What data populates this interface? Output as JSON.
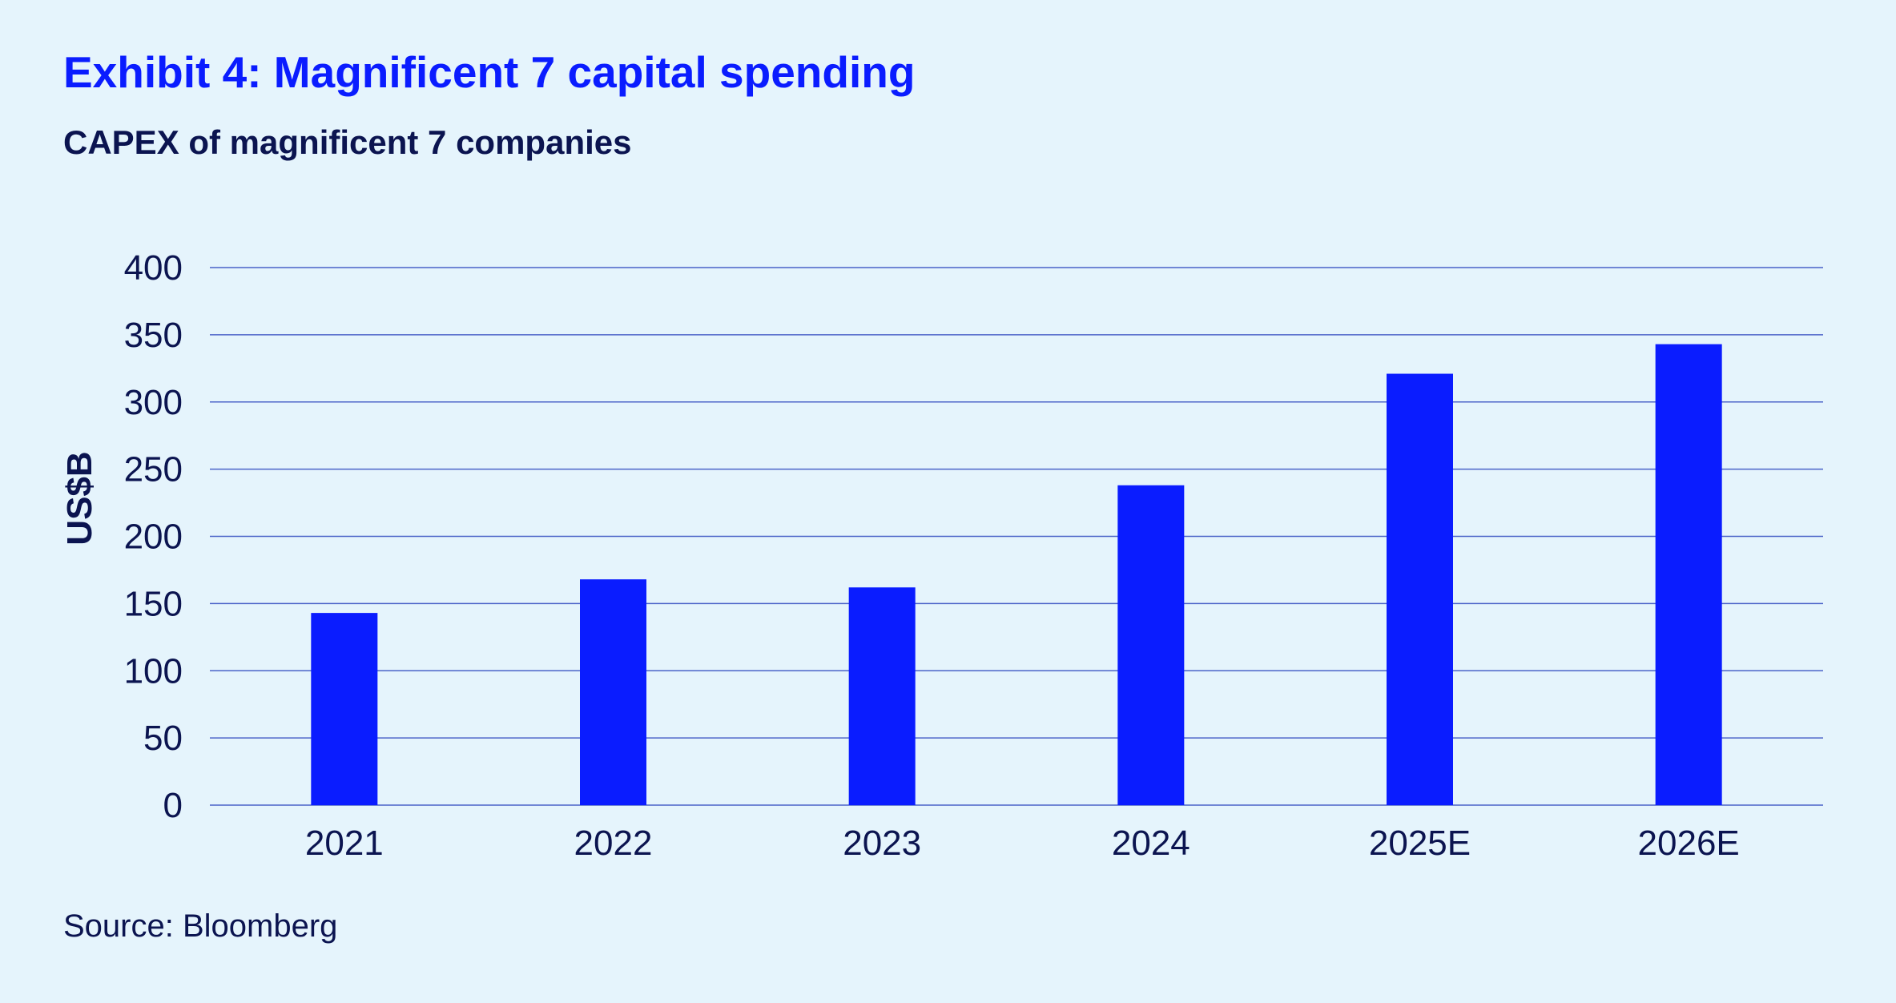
{
  "header": {
    "title": "Exhibit 4: Magnificent 7 capital spending",
    "subtitle": "CAPEX of magnificent 7 companies"
  },
  "footer": {
    "source": "Source: Bloomberg"
  },
  "colors": {
    "background": "#e5f4fc",
    "bar": "#0a1cff",
    "title": "#0a1cff",
    "text": "#0b1450",
    "grid": "#4a62c8"
  },
  "chart_data": {
    "type": "bar",
    "title": "Exhibit 4: Magnificent 7 capital spending",
    "subtitle": "CAPEX of magnificent 7 companies",
    "xlabel": "",
    "ylabel": "US$B",
    "categories": [
      "2021",
      "2022",
      "2023",
      "2024",
      "2025E",
      "2026E"
    ],
    "values": [
      143,
      168,
      162,
      238,
      321,
      343
    ],
    "ylim": [
      0,
      400
    ],
    "yticks": [
      0,
      50,
      100,
      150,
      200,
      250,
      300,
      350,
      400
    ],
    "grid": true,
    "legend": "none"
  }
}
